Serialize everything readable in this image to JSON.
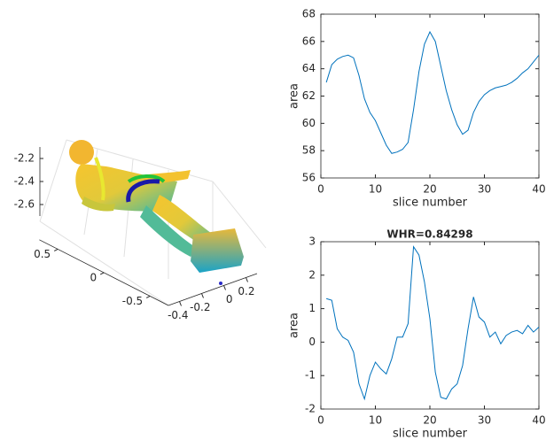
{
  "chart_data": [
    {
      "type": "line",
      "xlabel": "slice number",
      "ylabel": "area",
      "x": [
        1,
        2,
        3,
        4,
        5,
        6,
        7,
        8,
        9,
        10,
        11,
        12,
        13,
        14,
        15,
        16,
        17,
        18,
        19,
        20,
        21,
        22,
        23,
        24,
        25,
        26,
        27,
        28,
        29,
        30,
        31,
        32,
        33,
        34,
        35,
        36,
        37,
        38,
        39,
        40
      ],
      "series": [
        {
          "color": "#0072bd",
          "values": [
            63,
            64.3,
            64.7,
            64.9,
            65,
            64.8,
            63.5,
            61.8,
            60.8,
            60.2,
            59.3,
            58.4,
            57.8,
            57.9,
            58.1,
            58.6,
            61,
            63.8,
            65.8,
            66.7,
            66,
            64.2,
            62.4,
            61,
            59.9,
            59.2,
            59.5,
            60.8,
            61.6,
            62.1,
            62.4,
            62.6,
            62.7,
            62.8,
            63,
            63.3,
            63.7,
            64,
            64.5,
            65
          ]
        }
      ],
      "xlim": [
        0,
        40
      ],
      "xticks": [
        0,
        10,
        20,
        30,
        40
      ],
      "ylim": [
        56,
        68
      ],
      "yticks": [
        56,
        58,
        60,
        62,
        64,
        66,
        68
      ]
    },
    {
      "type": "line",
      "title": "WHR=0.84298",
      "xlabel": "slice number",
      "ylabel": "area",
      "x": [
        1,
        2,
        3,
        4,
        5,
        6,
        7,
        8,
        9,
        10,
        11,
        12,
        13,
        14,
        15,
        16,
        17,
        18,
        19,
        20,
        21,
        22,
        23,
        24,
        25,
        26,
        27,
        28,
        29,
        30,
        31,
        32,
        33,
        34,
        35,
        36,
        37,
        38,
        39,
        40
      ],
      "series": [
        {
          "color": "#0072bd",
          "values": [
            1.3,
            1.25,
            0.4,
            0.15,
            0.05,
            -0.3,
            -1.25,
            -1.7,
            -1.0,
            -0.6,
            -0.8,
            -0.95,
            -0.5,
            0.15,
            0.15,
            0.55,
            2.85,
            2.6,
            1.8,
            0.7,
            -0.9,
            -1.65,
            -1.7,
            -1.4,
            -1.25,
            -0.7,
            0.4,
            1.35,
            0.75,
            0.6,
            0.15,
            0.3,
            -0.05,
            0.2,
            0.3,
            0.35,
            0.25,
            0.5,
            0.3,
            0.45
          ]
        }
      ],
      "xlim": [
        0,
        40
      ],
      "xticks": [
        0,
        10,
        20,
        30,
        40
      ],
      "ylim": [
        -2,
        3
      ],
      "yticks": [
        -2,
        -1,
        0,
        1,
        2,
        3
      ]
    },
    {
      "type": "surface3d",
      "xlim": [
        -0.5,
        0.3
      ],
      "xticks": [
        -0.4,
        -0.2,
        0,
        0.2
      ],
      "ylim": [
        -0.7,
        0.7
      ],
      "yticks": [
        -0.5,
        0,
        0.5
      ],
      "zlim": [
        -2.7,
        -2.1
      ],
      "zticks": [
        -2.6,
        -2.4,
        -2.2
      ]
    }
  ]
}
